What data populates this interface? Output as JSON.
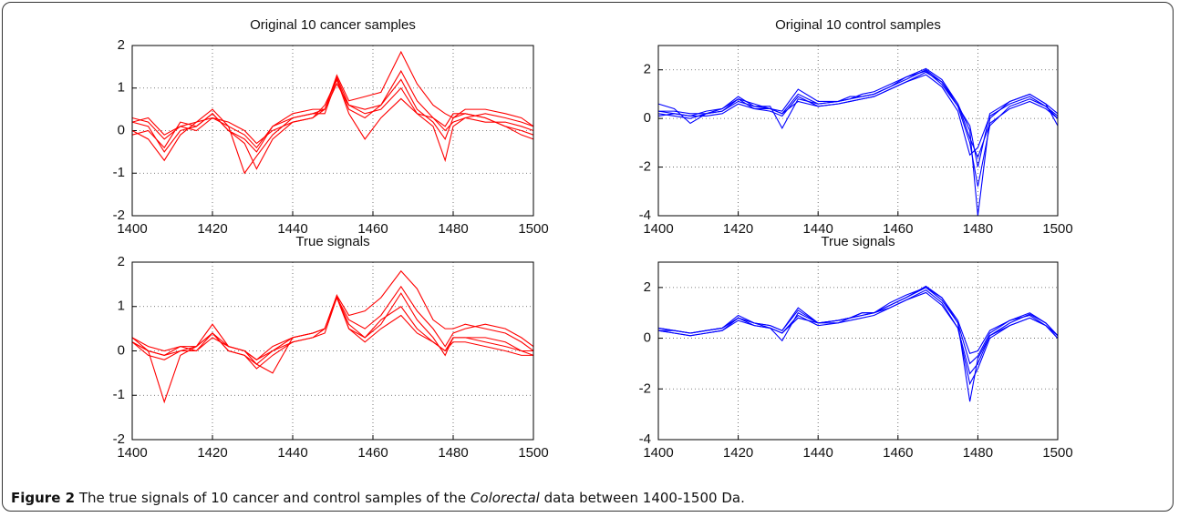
{
  "chart_data": [
    {
      "type": "line",
      "title": "Original 10 cancer samples",
      "x": [
        1400,
        1404,
        1408,
        1412,
        1416,
        1420,
        1424,
        1428,
        1431,
        1435,
        1440,
        1445,
        1448,
        1451,
        1454,
        1458,
        1462,
        1467,
        1471,
        1475,
        1478,
        1480,
        1483,
        1488,
        1493,
        1497,
        1500
      ],
      "xlim": [
        1400,
        1500
      ],
      "xticks": [
        1400,
        1420,
        1440,
        1460,
        1480,
        1500
      ],
      "ylim": [
        -2,
        2
      ],
      "yticks": [
        -2,
        -1,
        0,
        1,
        2
      ],
      "grid": true,
      "color": "#ff0000",
      "series": [
        {
          "values": [
            0.2,
            0.1,
            -0.5,
            0.0,
            0.1,
            0.4,
            0.0,
            -0.2,
            -0.5,
            0.1,
            0.3,
            0.4,
            0.5,
            1.3,
            0.7,
            0.8,
            0.9,
            1.85,
            1.1,
            0.6,
            0.4,
            0.3,
            0.5,
            0.5,
            0.4,
            0.3,
            0.1
          ]
        },
        {
          "values": [
            0.0,
            -0.2,
            -0.7,
            -0.1,
            0.2,
            0.5,
            0.1,
            -1.0,
            -0.6,
            -0.1,
            0.3,
            0.4,
            0.4,
            1.2,
            0.5,
            0.3,
            0.6,
            1.2,
            0.5,
            0.2,
            -0.2,
            0.3,
            0.4,
            0.3,
            0.1,
            0.0,
            -0.1
          ]
        },
        {
          "values": [
            0.3,
            0.2,
            -0.2,
            0.1,
            0.0,
            0.3,
            0.2,
            0.0,
            -0.3,
            0.0,
            0.2,
            0.3,
            0.5,
            1.25,
            0.6,
            0.4,
            0.5,
            1.0,
            0.4,
            0.1,
            -0.7,
            0.1,
            0.3,
            0.2,
            0.2,
            0.1,
            0.0
          ]
        },
        {
          "values": [
            -0.1,
            0.0,
            -0.4,
            0.2,
            0.1,
            0.4,
            0.0,
            -0.3,
            -0.9,
            -0.2,
            0.2,
            0.3,
            0.6,
            1.2,
            0.4,
            -0.2,
            0.3,
            0.75,
            0.4,
            0.3,
            0.1,
            0.4,
            0.4,
            0.3,
            0.1,
            -0.1,
            -0.2
          ]
        },
        {
          "values": [
            0.2,
            0.3,
            -0.1,
            0.1,
            0.2,
            0.3,
            0.1,
            -0.1,
            -0.4,
            0.1,
            0.4,
            0.5,
            0.5,
            1.1,
            0.6,
            0.5,
            0.6,
            1.4,
            0.7,
            0.3,
            0.0,
            0.2,
            0.3,
            0.4,
            0.3,
            0.2,
            0.1
          ]
        }
      ]
    },
    {
      "type": "line",
      "title": "Original 10 control samples",
      "x": [
        1400,
        1404,
        1408,
        1412,
        1416,
        1420,
        1424,
        1428,
        1431,
        1435,
        1440,
        1445,
        1448,
        1451,
        1454,
        1458,
        1462,
        1467,
        1471,
        1475,
        1478,
        1480,
        1483,
        1488,
        1493,
        1497,
        1500
      ],
      "xlim": [
        1400,
        1500
      ],
      "xticks": [
        1400,
        1420,
        1440,
        1460,
        1480,
        1500
      ],
      "ylim": [
        -4,
        3
      ],
      "yticks": [
        -4,
        -2,
        0,
        2
      ],
      "grid": true,
      "color": "#0000ff",
      "series": [
        {
          "values": [
            0.3,
            0.2,
            0.1,
            0.3,
            0.4,
            0.9,
            0.5,
            0.4,
            0.3,
            1.2,
            0.7,
            0.7,
            0.8,
            0.9,
            1.0,
            1.3,
            1.7,
            2.05,
            1.6,
            0.6,
            -0.5,
            -4.0,
            0.0,
            0.7,
            1.0,
            0.6,
            0.2
          ]
        },
        {
          "values": [
            0.6,
            0.4,
            -0.2,
            0.2,
            0.3,
            0.7,
            0.5,
            0.5,
            -0.4,
            0.8,
            0.6,
            0.7,
            0.8,
            1.0,
            1.1,
            1.4,
            1.7,
            1.95,
            1.4,
            0.5,
            -1.0,
            -2.8,
            -0.3,
            0.5,
            0.8,
            0.5,
            0.0
          ]
        },
        {
          "values": [
            0.2,
            0.1,
            0.0,
            0.2,
            0.3,
            0.8,
            0.4,
            0.3,
            0.1,
            0.9,
            0.5,
            0.6,
            0.7,
            0.8,
            0.9,
            1.2,
            1.5,
            1.8,
            1.3,
            0.3,
            -1.5,
            -1.2,
            0.1,
            0.6,
            0.9,
            0.5,
            0.1
          ]
        },
        {
          "values": [
            0.3,
            0.3,
            0.2,
            0.2,
            0.4,
            0.8,
            0.6,
            0.4,
            0.2,
            1.0,
            0.6,
            0.7,
            0.9,
            0.9,
            1.0,
            1.3,
            1.6,
            2.0,
            1.5,
            0.5,
            -0.3,
            -2.0,
            0.2,
            0.7,
            1.0,
            0.6,
            -0.3
          ]
        },
        {
          "values": [
            0.1,
            0.2,
            0.1,
            0.1,
            0.2,
            0.6,
            0.4,
            0.4,
            0.2,
            0.7,
            0.5,
            0.6,
            0.7,
            0.8,
            0.9,
            1.2,
            1.5,
            1.9,
            1.5,
            0.6,
            -0.8,
            -1.6,
            -0.2,
            0.4,
            0.7,
            0.4,
            0.0
          ]
        }
      ]
    },
    {
      "type": "line",
      "title": "True signals",
      "x": [
        1400,
        1404,
        1408,
        1412,
        1416,
        1420,
        1424,
        1428,
        1431,
        1435,
        1440,
        1445,
        1448,
        1451,
        1454,
        1458,
        1462,
        1467,
        1471,
        1475,
        1478,
        1480,
        1483,
        1488,
        1493,
        1497,
        1500
      ],
      "xlim": [
        1400,
        1500
      ],
      "xticks": [
        1400,
        1420,
        1440,
        1460,
        1480,
        1500
      ],
      "ylim": [
        -2,
        2
      ],
      "yticks": [
        -2,
        -1,
        0,
        1,
        2
      ],
      "grid": true,
      "color": "#ff0000",
      "series": [
        {
          "values": [
            0.3,
            0.0,
            -0.1,
            0.0,
            0.1,
            0.6,
            0.1,
            0.0,
            -0.2,
            0.0,
            0.3,
            0.4,
            0.5,
            1.25,
            0.8,
            0.9,
            1.2,
            1.8,
            1.4,
            0.7,
            0.5,
            0.5,
            0.6,
            0.5,
            0.4,
            0.2,
            0.0
          ]
        },
        {
          "values": [
            0.2,
            0.0,
            -1.15,
            -0.1,
            0.1,
            0.4,
            0.0,
            -0.1,
            -0.4,
            -0.1,
            0.2,
            0.3,
            0.5,
            1.2,
            0.6,
            0.3,
            0.6,
            1.3,
            0.7,
            0.3,
            -0.1,
            0.3,
            0.3,
            0.2,
            0.1,
            0.0,
            0.0
          ]
        },
        {
          "values": [
            0.2,
            -0.1,
            -0.2,
            0.0,
            0.0,
            0.3,
            0.1,
            0.0,
            -0.3,
            -0.5,
            0.3,
            0.4,
            0.5,
            1.25,
            0.5,
            0.3,
            0.7,
            1.0,
            0.5,
            0.2,
            0.0,
            0.3,
            0.3,
            0.3,
            0.2,
            0.0,
            -0.1
          ]
        },
        {
          "values": [
            0.2,
            0.0,
            -0.1,
            0.1,
            0.0,
            0.4,
            0.0,
            -0.1,
            -0.3,
            0.0,
            0.2,
            0.3,
            0.4,
            1.2,
            0.5,
            0.2,
            0.5,
            0.8,
            0.4,
            0.2,
            0.0,
            0.2,
            0.2,
            0.1,
            0.0,
            -0.1,
            -0.1
          ]
        },
        {
          "values": [
            0.3,
            0.1,
            0.0,
            0.1,
            0.1,
            0.4,
            0.1,
            0.0,
            -0.2,
            0.1,
            0.3,
            0.4,
            0.5,
            1.2,
            0.7,
            0.5,
            0.8,
            1.45,
            0.9,
            0.5,
            0.1,
            0.4,
            0.5,
            0.6,
            0.5,
            0.3,
            0.1
          ]
        }
      ]
    },
    {
      "type": "line",
      "title": "True signals",
      "x": [
        1400,
        1404,
        1408,
        1412,
        1416,
        1420,
        1424,
        1428,
        1431,
        1435,
        1440,
        1445,
        1448,
        1451,
        1454,
        1458,
        1462,
        1467,
        1471,
        1475,
        1478,
        1480,
        1483,
        1488,
        1493,
        1497,
        1500
      ],
      "xlim": [
        1400,
        1500
      ],
      "xticks": [
        1400,
        1420,
        1440,
        1460,
        1480,
        1500
      ],
      "ylim": [
        -4,
        3
      ],
      "yticks": [
        -4,
        -2,
        0,
        2
      ],
      "grid": true,
      "color": "#0000ff",
      "series": [
        {
          "values": [
            0.4,
            0.3,
            0.2,
            0.3,
            0.4,
            0.9,
            0.6,
            0.5,
            0.3,
            1.2,
            0.6,
            0.7,
            0.8,
            1.0,
            1.0,
            1.3,
            1.6,
            2.05,
            1.6,
            0.6,
            -2.5,
            -0.8,
            0.1,
            0.6,
            0.95,
            0.6,
            0.1
          ]
        },
        {
          "values": [
            0.3,
            0.2,
            0.1,
            0.2,
            0.3,
            0.8,
            0.5,
            0.4,
            -0.1,
            1.0,
            0.6,
            0.6,
            0.8,
            0.9,
            1.0,
            1.2,
            1.5,
            1.9,
            1.4,
            0.4,
            -1.8,
            -1.2,
            0.0,
            0.5,
            0.8,
            0.5,
            0.0
          ]
        },
        {
          "values": [
            0.4,
            0.3,
            0.2,
            0.3,
            0.4,
            0.8,
            0.6,
            0.4,
            0.2,
            0.8,
            0.6,
            0.7,
            0.8,
            0.9,
            1.0,
            1.3,
            1.6,
            2.0,
            1.5,
            0.6,
            -1.0,
            -0.7,
            0.2,
            0.7,
            0.9,
            0.5,
            0.1
          ]
        },
        {
          "values": [
            0.3,
            0.2,
            0.1,
            0.2,
            0.3,
            0.7,
            0.5,
            0.4,
            0.2,
            0.9,
            0.5,
            0.6,
            0.7,
            0.8,
            0.9,
            1.2,
            1.5,
            1.8,
            1.3,
            0.4,
            -1.4,
            -1.0,
            0.1,
            0.5,
            0.8,
            0.5,
            0.0
          ]
        },
        {
          "values": [
            0.3,
            0.3,
            0.2,
            0.3,
            0.4,
            0.8,
            0.6,
            0.5,
            0.3,
            1.1,
            0.6,
            0.7,
            0.8,
            1.0,
            1.0,
            1.4,
            1.7,
            2.0,
            1.6,
            0.7,
            -0.6,
            -0.5,
            0.3,
            0.7,
            1.0,
            0.6,
            0.1
          ]
        }
      ]
    }
  ],
  "caption": {
    "label": "Figure 2",
    "text_before": "The true signals of 10 cancer and control samples of the",
    "italic": "Colorectal",
    "text_after": "data between 1400-1500 Da."
  }
}
